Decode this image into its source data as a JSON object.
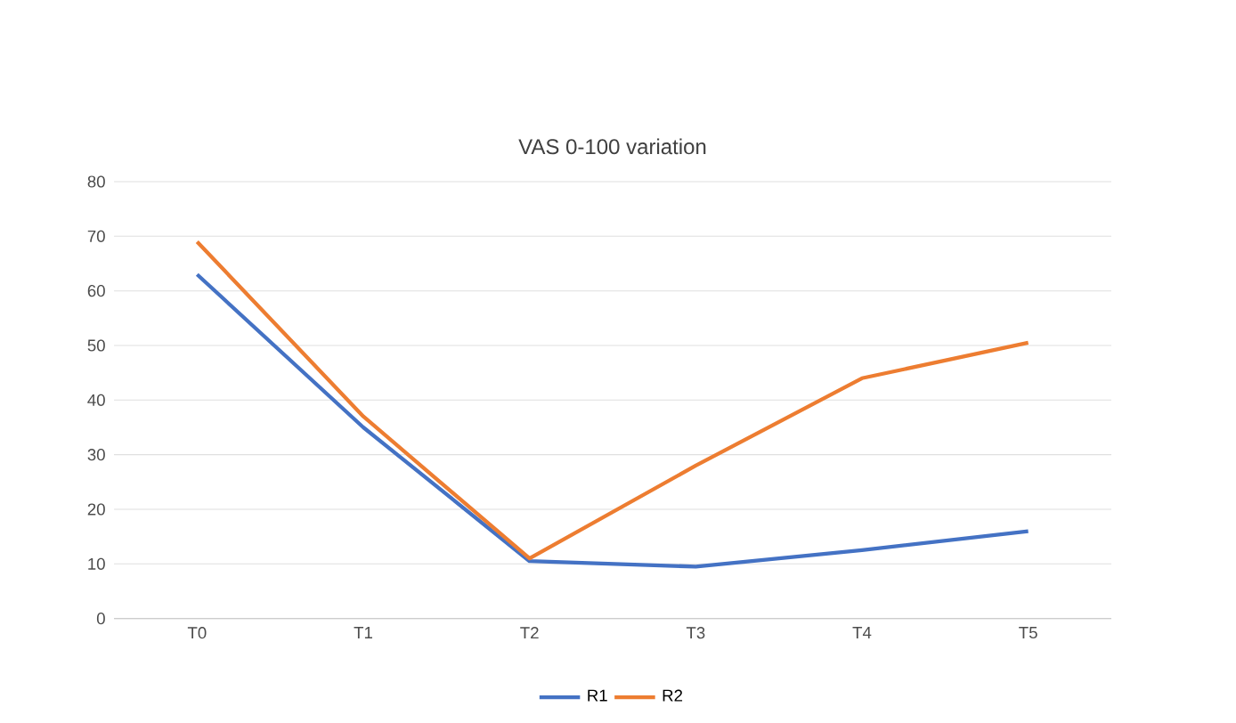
{
  "chart_data": {
    "type": "line",
    "title": "VAS 0-100 variation",
    "categories": [
      "T0",
      "T1",
      "T2",
      "T3",
      "T4",
      "T5"
    ],
    "series": [
      {
        "name": "R1",
        "color": "#4472c4",
        "values": [
          63,
          35,
          10.5,
          9.5,
          12.5,
          16
        ]
      },
      {
        "name": "R2",
        "color": "#ed7d31",
        "values": [
          69,
          37,
          11,
          28,
          44,
          50.5
        ]
      }
    ],
    "ylim": [
      0,
      80
    ],
    "yticks": [
      0,
      10,
      20,
      30,
      40,
      50,
      60,
      70,
      80
    ],
    "grid": "y",
    "legend": "bottom",
    "marker": "none",
    "line_style": "solid"
  }
}
